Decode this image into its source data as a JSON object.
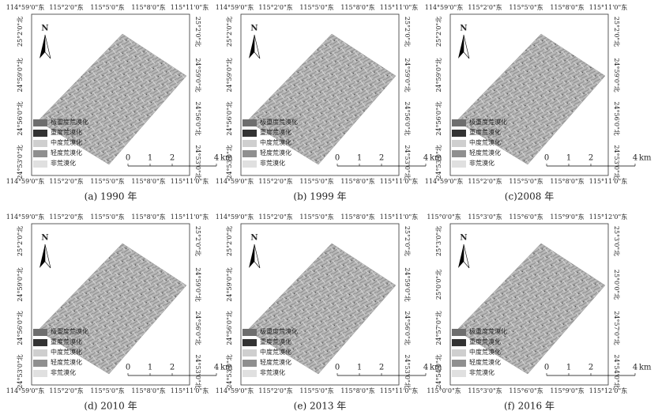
{
  "north": "N",
  "legend": [
    "极重度荒漠化",
    "重度荒漠化",
    "中度荒漠化",
    "轻度荒漠化",
    "非荒漠化"
  ],
  "scale": {
    "ticks": [
      "0",
      "1",
      "2",
      "4"
    ],
    "unit": "km"
  },
  "panels": [
    {
      "caption": "(a) 1990 年",
      "lon": [
        "114°59'0\"东",
        "115°2'0\"东",
        "115°5'0\"东",
        "115°8'0\"东",
        "115°11'0\"东"
      ],
      "lat": [
        "25°2'0\"北",
        "24°59'0\"北",
        "24°56'0\"北",
        "24°53'0\"北"
      ]
    },
    {
      "caption": "(b) 1999 年",
      "lon": [
        "114°59'0\"东",
        "115°2'0\"东",
        "115°5'0\"东",
        "115°8'0\"东",
        "115°11'0\"东"
      ],
      "lat": [
        "25°2'0\"北",
        "24°59'0\"北",
        "24°56'0\"北",
        "24°53'0\"北"
      ]
    },
    {
      "caption": "(c)2008 年",
      "lon": [
        "114°59'0\"东",
        "115°2'0\"东",
        "115°5'0\"东",
        "115°8'0\"东",
        "115°11'0\"东"
      ],
      "lat": [
        "25°2'0\"北",
        "24°59'0\"北",
        "24°56'0\"北",
        "24°53'0\"北"
      ]
    },
    {
      "caption": "(d) 2010 年",
      "lon": [
        "114°59'0\"东",
        "115°2'0\"东",
        "115°5'0\"东",
        "115°8'0\"东",
        "115°11'0\"东"
      ],
      "lat": [
        "25°2'0\"北",
        "24°59'0\"北",
        "24°56'0\"北",
        "24°53'0\"北"
      ]
    },
    {
      "caption": "(e) 2013 年",
      "lon": [
        "114°59'0\"东",
        "115°2'0\"东",
        "115°5'0\"东",
        "115°8'0\"东",
        "115°11'0\"东"
      ],
      "lat": [
        "25°2'0\"北",
        "24°59'0\"北",
        "24°56'0\"北",
        "24°53'0\"北"
      ]
    },
    {
      "caption": "(f) 2016 年",
      "lon": [
        "115°0'0\"东",
        "115°3'0\"东",
        "115°6'0\"东",
        "115°9'0\"东",
        "115°12'0\"东"
      ],
      "lat": [
        "25°3'0\"北",
        "25°0'0\"北",
        "24°57'0\"北",
        "24°54'0\"北"
      ]
    }
  ]
}
